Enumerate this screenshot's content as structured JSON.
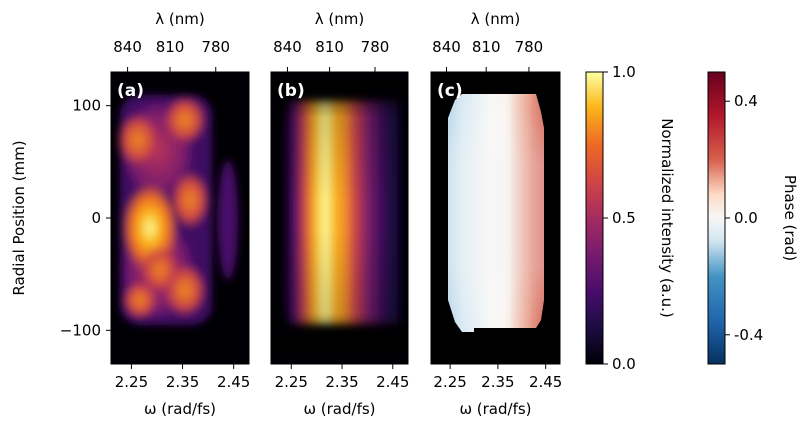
{
  "chart_data": [
    {
      "type": "heatmap",
      "panel_label": "(a)",
      "xlabel": "ω (rad/fs)",
      "top_xlabel": "λ (nm)",
      "ylabel": "Radial Position (mm)",
      "xlim": [
        2.21,
        2.48
      ],
      "ylim": [
        -130,
        130
      ],
      "xticks": [
        2.25,
        2.35,
        2.45
      ],
      "xtick_labels": [
        "2.25",
        "2.35",
        "2.45"
      ],
      "top_ticks_nm": [
        840,
        810,
        780
      ],
      "top_tick_labels": [
        "840",
        "810",
        "780"
      ],
      "yticks": [
        -100,
        0,
        100
      ],
      "ytick_labels": [
        "−100",
        "0",
        "100"
      ],
      "colormap": "inferno",
      "description_of_signal": "measured, patchy intensity filling ω≈2.22–2.40, peak near ω≈2.25 at y≈−15"
    },
    {
      "type": "heatmap",
      "panel_label": "(b)",
      "xlabel": "ω (rad/fs)",
      "top_xlabel": "λ (nm)",
      "xlim": [
        2.21,
        2.48
      ],
      "ylim": [
        -130,
        130
      ],
      "xticks": [
        2.25,
        2.35,
        2.45
      ],
      "xtick_labels": [
        "2.25",
        "2.35",
        "2.45"
      ],
      "top_ticks_nm": [
        840,
        810,
        780
      ],
      "top_tick_labels": [
        "840",
        "810",
        "780"
      ],
      "colormap": "inferno"
    },
    {
      "type": "heatmap",
      "panel_label": "(c)",
      "xlabel": "ω (rad/fs)",
      "top_xlabel": "λ (nm)",
      "xlim": [
        2.21,
        2.48
      ],
      "ylim": [
        -130,
        130
      ],
      "xticks": [
        2.25,
        2.35,
        2.45
      ],
      "xtick_labels": [
        "2.25",
        "2.35",
        "2.45"
      ],
      "top_ticks_nm": [
        840,
        810,
        780
      ],
      "top_tick_labels": [
        "840",
        "810",
        "780"
      ],
      "colormap": "RdBu_r",
      "range": [
        -0.5,
        0.5
      ]
    }
  ],
  "colorbars": {
    "intensity": {
      "label": "Normalized intensity (a.u.)",
      "range": [
        0,
        1
      ],
      "ticks": [
        0,
        0.5,
        1
      ],
      "tick_labels": [
        "0.0",
        "0.5",
        "1.0"
      ],
      "colormap": "inferno"
    },
    "phase": {
      "label": "Phase (rad)",
      "range": [
        -0.5,
        0.5
      ],
      "ticks": [
        -0.4,
        0,
        0.4
      ],
      "tick_labels": [
        "-0.4",
        "0.0",
        "0.4"
      ],
      "colormap": "RdBu_r"
    }
  }
}
